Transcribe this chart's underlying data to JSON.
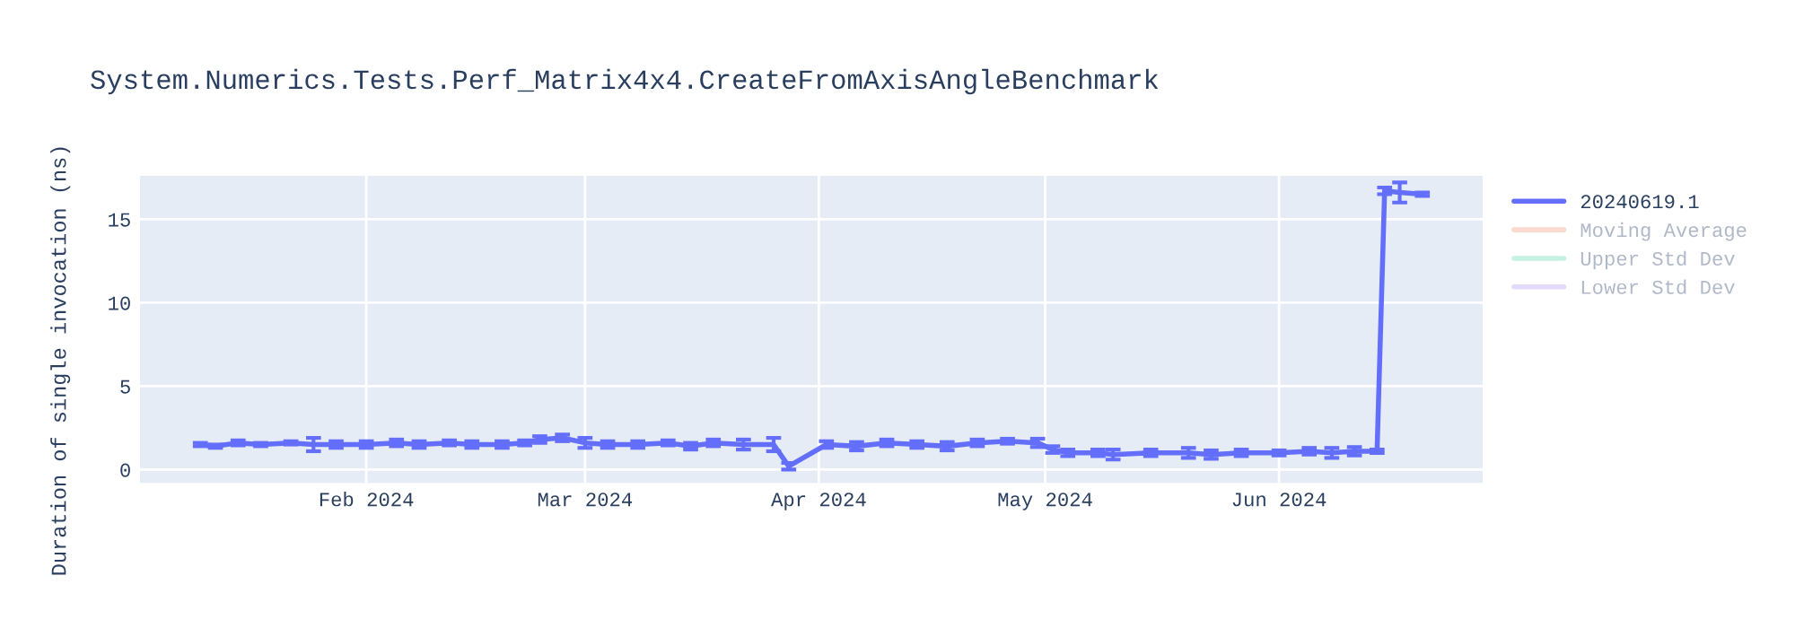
{
  "chart_data": {
    "type": "line",
    "title": "System.Numerics.Tests.Perf_Matrix4x4.CreateFromAxisAngleBenchmark",
    "ylabel": "Duration of single invocation (ns)",
    "x": [
      "2024-01-10",
      "2024-01-12",
      "2024-01-15",
      "2024-01-18",
      "2024-01-22",
      "2024-01-25",
      "2024-01-28",
      "2024-02-01",
      "2024-02-05",
      "2024-02-08",
      "2024-02-12",
      "2024-02-15",
      "2024-02-19",
      "2024-02-22",
      "2024-02-24",
      "2024-02-27",
      "2024-03-01",
      "2024-03-04",
      "2024-03-08",
      "2024-03-12",
      "2024-03-15",
      "2024-03-18",
      "2024-03-22",
      "2024-03-26",
      "2024-03-28",
      "2024-04-02",
      "2024-04-06",
      "2024-04-10",
      "2024-04-14",
      "2024-04-18",
      "2024-04-22",
      "2024-04-26",
      "2024-04-30",
      "2024-05-02",
      "2024-05-04",
      "2024-05-08",
      "2024-05-10",
      "2024-05-15",
      "2024-05-20",
      "2024-05-23",
      "2024-05-27",
      "2024-06-01",
      "2024-06-05",
      "2024-06-08",
      "2024-06-11",
      "2024-06-14",
      "2024-06-15",
      "2024-06-17",
      "2024-06-20"
    ],
    "series": [
      {
        "name": "20240619.1",
        "color": "#636efa",
        "values": [
          1.5,
          1.4,
          1.6,
          1.5,
          1.6,
          1.5,
          1.5,
          1.5,
          1.6,
          1.5,
          1.6,
          1.5,
          1.5,
          1.6,
          1.8,
          1.9,
          1.6,
          1.5,
          1.5,
          1.6,
          1.4,
          1.6,
          1.5,
          1.5,
          0.2,
          1.5,
          1.4,
          1.6,
          1.5,
          1.4,
          1.6,
          1.7,
          1.6,
          1.2,
          1.0,
          1.0,
          0.9,
          1.0,
          1.0,
          0.9,
          1.0,
          1.0,
          1.1,
          1.0,
          1.1,
          1.1,
          16.7,
          16.6,
          16.5
        ],
        "errors": [
          0.1,
          0.1,
          0.15,
          0.1,
          0.1,
          0.4,
          0.2,
          0.2,
          0.2,
          0.2,
          0.15,
          0.2,
          0.2,
          0.15,
          0.2,
          0.2,
          0.3,
          0.2,
          0.2,
          0.15,
          0.2,
          0.2,
          0.3,
          0.4,
          0.2,
          0.2,
          0.25,
          0.2,
          0.2,
          0.25,
          0.2,
          0.15,
          0.25,
          0.2,
          0.2,
          0.2,
          0.3,
          0.2,
          0.3,
          0.25,
          0.2,
          0.15,
          0.2,
          0.3,
          0.25,
          0.1,
          0.2,
          0.6,
          0.1
        ]
      },
      {
        "name": "Moving Average",
        "color": "#f8b4a0",
        "values": [
          null,
          null,
          null,
          null,
          null,
          null,
          null,
          null,
          null,
          null,
          null,
          null,
          null,
          null,
          null,
          null,
          null,
          null,
          null,
          null,
          null,
          null,
          null,
          null,
          null,
          null,
          null,
          null,
          null,
          null,
          null,
          null,
          null,
          null,
          null,
          null,
          null,
          null,
          null,
          null,
          null,
          null,
          null,
          null,
          null,
          null,
          null,
          null,
          null
        ]
      },
      {
        "name": "Upper Std Dev",
        "color": "#8de5c6",
        "values": [
          null,
          null,
          null,
          null,
          null,
          null,
          null,
          null,
          null,
          null,
          null,
          null,
          null,
          null,
          null,
          null,
          null,
          null,
          null,
          null,
          null,
          null,
          null,
          null,
          null,
          null,
          null,
          null,
          null,
          null,
          null,
          null,
          null,
          null,
          null,
          null,
          null,
          null,
          null,
          null,
          null,
          null,
          null,
          null,
          null,
          null,
          null,
          null,
          null
        ]
      },
      {
        "name": "Lower Std Dev",
        "color": "#c9b5f8",
        "values": [
          null,
          null,
          null,
          null,
          null,
          null,
          null,
          null,
          null,
          null,
          null,
          null,
          null,
          null,
          null,
          null,
          null,
          null,
          null,
          null,
          null,
          null,
          null,
          null,
          null,
          null,
          null,
          null,
          null,
          null,
          null,
          null,
          null,
          null,
          null,
          null,
          null,
          null,
          null,
          null,
          null,
          null,
          null,
          null,
          null,
          null,
          null,
          null,
          null
        ]
      }
    ],
    "xlim": [
      "2024-01-02",
      "2024-06-28"
    ],
    "xticks": [
      {
        "value": "2024-02-01",
        "label": "Feb 2024"
      },
      {
        "value": "2024-03-01",
        "label": "Mar 2024"
      },
      {
        "value": "2024-04-01",
        "label": "Apr 2024"
      },
      {
        "value": "2024-05-01",
        "label": "May 2024"
      },
      {
        "value": "2024-06-01",
        "label": "Jun 2024"
      }
    ],
    "ylim": [
      -0.8,
      17.6
    ],
    "yticks": [
      0,
      5,
      10,
      15
    ],
    "grid": true,
    "legend": "right"
  }
}
